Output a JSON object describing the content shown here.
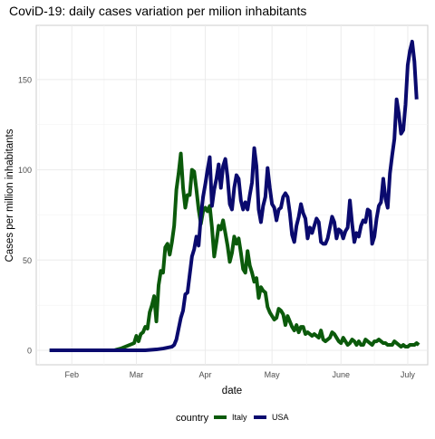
{
  "chart_data": {
    "type": "line",
    "title": "CoviD-19: daily cases variation per milion inhabitants",
    "xlabel": "date",
    "ylabel": "Cases per million inhabitants",
    "x_start": "2020-01-22",
    "x_ticks": [
      {
        "label": "Feb",
        "date": "2020-02-01"
      },
      {
        "label": "Mar",
        "date": "2020-03-01"
      },
      {
        "label": "Apr",
        "date": "2020-04-01"
      },
      {
        "label": "May",
        "date": "2020-05-01"
      },
      {
        "label": "June",
        "date": "2020-06-01"
      },
      {
        "label": "July",
        "date": "2020-07-01"
      }
    ],
    "xlim": [
      "2020-01-16",
      "2020-07-10"
    ],
    "ylim": [
      -8,
      180
    ],
    "y_ticks": [
      0,
      50,
      100,
      150
    ],
    "grid": true,
    "legend": {
      "title": "country",
      "position": "bottom"
    },
    "series": [
      {
        "name": "Italy",
        "color": "#0b5a0b",
        "points": [
          [
            "2020-01-22",
            0
          ],
          [
            "2020-02-20",
            0
          ],
          [
            "2020-02-23",
            1
          ],
          [
            "2020-02-25",
            2
          ],
          [
            "2020-02-27",
            3
          ],
          [
            "2020-02-29",
            4
          ],
          [
            "2020-03-01",
            8
          ],
          [
            "2020-03-02",
            5
          ],
          [
            "2020-03-03",
            9
          ],
          [
            "2020-03-04",
            10
          ],
          [
            "2020-03-05",
            13
          ],
          [
            "2020-03-06",
            12
          ],
          [
            "2020-03-07",
            21
          ],
          [
            "2020-03-08",
            25
          ],
          [
            "2020-03-09",
            30
          ],
          [
            "2020-03-10",
            16
          ],
          [
            "2020-03-11",
            36
          ],
          [
            "2020-03-12",
            44
          ],
          [
            "2020-03-13",
            43
          ],
          [
            "2020-03-14",
            57
          ],
          [
            "2020-03-15",
            59
          ],
          [
            "2020-03-16",
            53
          ],
          [
            "2020-03-17",
            60
          ],
          [
            "2020-03-18",
            69
          ],
          [
            "2020-03-19",
            89
          ],
          [
            "2020-03-20",
            98
          ],
          [
            "2020-03-21",
            109
          ],
          [
            "2020-03-22",
            90
          ],
          [
            "2020-03-23",
            79
          ],
          [
            "2020-03-24",
            86
          ],
          [
            "2020-03-25",
            86
          ],
          [
            "2020-03-26",
            100
          ],
          [
            "2020-03-27",
            99
          ],
          [
            "2020-03-28",
            89
          ],
          [
            "2020-03-29",
            78
          ],
          [
            "2020-03-30",
            70
          ],
          [
            "2020-03-31",
            77
          ],
          [
            "2020-04-01",
            79
          ],
          [
            "2020-04-02",
            77
          ],
          [
            "2020-04-03",
            80
          ],
          [
            "2020-04-04",
            68
          ],
          [
            "2020-04-05",
            52
          ],
          [
            "2020-04-06",
            60
          ],
          [
            "2020-04-07",
            69
          ],
          [
            "2020-04-08",
            67
          ],
          [
            "2020-04-09",
            72
          ],
          [
            "2020-04-10",
            65
          ],
          [
            "2020-04-11",
            58
          ],
          [
            "2020-04-12",
            49
          ],
          [
            "2020-04-13",
            54
          ],
          [
            "2020-04-14",
            63
          ],
          [
            "2020-04-15",
            59
          ],
          [
            "2020-04-16",
            62
          ],
          [
            "2020-04-17",
            54
          ],
          [
            "2020-04-18",
            45
          ],
          [
            "2020-04-19",
            43
          ],
          [
            "2020-04-20",
            55
          ],
          [
            "2020-04-21",
            47
          ],
          [
            "2020-04-22",
            43
          ],
          [
            "2020-04-23",
            38
          ],
          [
            "2020-04-24",
            40
          ],
          [
            "2020-04-25",
            29
          ],
          [
            "2020-04-26",
            35
          ],
          [
            "2020-04-27",
            33
          ],
          [
            "2020-04-28",
            32
          ],
          [
            "2020-04-29",
            24
          ],
          [
            "2020-04-30",
            21
          ],
          [
            "2020-05-01",
            19
          ],
          [
            "2020-05-02",
            17
          ],
          [
            "2020-05-03",
            18
          ],
          [
            "2020-05-04",
            23
          ],
          [
            "2020-05-05",
            22
          ],
          [
            "2020-05-06",
            20
          ],
          [
            "2020-05-07",
            14
          ],
          [
            "2020-05-08",
            19
          ],
          [
            "2020-05-09",
            16
          ],
          [
            "2020-05-10",
            13
          ],
          [
            "2020-05-11",
            11
          ],
          [
            "2020-05-12",
            14
          ],
          [
            "2020-05-13",
            10
          ],
          [
            "2020-05-14",
            13
          ],
          [
            "2020-05-15",
            13
          ],
          [
            "2020-05-16",
            9
          ],
          [
            "2020-05-17",
            10
          ],
          [
            "2020-05-18",
            9
          ],
          [
            "2020-05-19",
            8
          ],
          [
            "2020-05-20",
            9
          ],
          [
            "2020-05-21",
            8
          ],
          [
            "2020-05-22",
            7
          ],
          [
            "2020-05-23",
            11
          ],
          [
            "2020-05-24",
            6
          ],
          [
            "2020-05-25",
            5
          ],
          [
            "2020-05-26",
            6
          ],
          [
            "2020-05-27",
            7
          ],
          [
            "2020-05-28",
            10
          ],
          [
            "2020-05-29",
            9
          ],
          [
            "2020-05-30",
            7
          ],
          [
            "2020-05-31",
            5
          ],
          [
            "2020-06-01",
            4
          ],
          [
            "2020-06-02",
            7
          ],
          [
            "2020-06-03",
            5
          ],
          [
            "2020-06-04",
            3
          ],
          [
            "2020-06-05",
            4
          ],
          [
            "2020-06-06",
            6
          ],
          [
            "2020-06-07",
            5
          ],
          [
            "2020-06-08",
            3
          ],
          [
            "2020-06-09",
            5
          ],
          [
            "2020-06-10",
            3
          ],
          [
            "2020-06-11",
            3
          ],
          [
            "2020-06-12",
            6
          ],
          [
            "2020-06-13",
            5
          ],
          [
            "2020-06-14",
            4
          ],
          [
            "2020-06-15",
            3
          ],
          [
            "2020-06-16",
            5
          ],
          [
            "2020-06-17",
            5
          ],
          [
            "2020-06-18",
            6
          ],
          [
            "2020-06-19",
            5
          ],
          [
            "2020-06-20",
            4
          ],
          [
            "2020-06-21",
            4
          ],
          [
            "2020-06-22",
            3
          ],
          [
            "2020-06-23",
            3
          ],
          [
            "2020-06-24",
            3
          ],
          [
            "2020-06-25",
            5
          ],
          [
            "2020-06-26",
            4
          ],
          [
            "2020-06-27",
            3
          ],
          [
            "2020-06-28",
            2
          ],
          [
            "2020-06-29",
            3
          ],
          [
            "2020-06-30",
            2
          ],
          [
            "2020-07-01",
            2
          ],
          [
            "2020-07-02",
            3
          ],
          [
            "2020-07-03",
            3
          ],
          [
            "2020-07-04",
            3
          ],
          [
            "2020-07-05",
            4
          ],
          [
            "2020-07-06",
            3
          ]
        ]
      },
      {
        "name": "USA",
        "color": "#0a0a6e",
        "points": [
          [
            "2020-01-22",
            0
          ],
          [
            "2020-03-05",
            0
          ],
          [
            "2020-03-10",
            0.5
          ],
          [
            "2020-03-13",
            1
          ],
          [
            "2020-03-15",
            1.5
          ],
          [
            "2020-03-17",
            2
          ],
          [
            "2020-03-18",
            3
          ],
          [
            "2020-03-19",
            6
          ],
          [
            "2020-03-20",
            12
          ],
          [
            "2020-03-21",
            18
          ],
          [
            "2020-03-22",
            22
          ],
          [
            "2020-03-23",
            31
          ],
          [
            "2020-03-24",
            32
          ],
          [
            "2020-03-25",
            42
          ],
          [
            "2020-03-26",
            52
          ],
          [
            "2020-03-27",
            56
          ],
          [
            "2020-03-28",
            63
          ],
          [
            "2020-03-29",
            58
          ],
          [
            "2020-03-30",
            74
          ],
          [
            "2020-03-31",
            85
          ],
          [
            "2020-04-01",
            92
          ],
          [
            "2020-04-02",
            100
          ],
          [
            "2020-04-03",
            107
          ],
          [
            "2020-04-04",
            80
          ],
          [
            "2020-04-05",
            89
          ],
          [
            "2020-04-06",
            95
          ],
          [
            "2020-04-07",
            103
          ],
          [
            "2020-04-08",
            90
          ],
          [
            "2020-04-09",
            102
          ],
          [
            "2020-04-10",
            106
          ],
          [
            "2020-04-11",
            96
          ],
          [
            "2020-04-12",
            81
          ],
          [
            "2020-04-13",
            78
          ],
          [
            "2020-04-14",
            90
          ],
          [
            "2020-04-15",
            97
          ],
          [
            "2020-04-16",
            95
          ],
          [
            "2020-04-17",
            83
          ],
          [
            "2020-04-18",
            78
          ],
          [
            "2020-04-19",
            82
          ],
          [
            "2020-04-20",
            78
          ],
          [
            "2020-04-21",
            86
          ],
          [
            "2020-04-22",
            93
          ],
          [
            "2020-04-23",
            112
          ],
          [
            "2020-04-24",
            102
          ],
          [
            "2020-04-25",
            78
          ],
          [
            "2020-04-26",
            71
          ],
          [
            "2020-04-27",
            80
          ],
          [
            "2020-04-28",
            85
          ],
          [
            "2020-04-29",
            101
          ],
          [
            "2020-04-30",
            90
          ],
          [
            "2020-05-01",
            81
          ],
          [
            "2020-05-02",
            79
          ],
          [
            "2020-05-03",
            72
          ],
          [
            "2020-05-04",
            78
          ],
          [
            "2020-05-05",
            79
          ],
          [
            "2020-05-06",
            85
          ],
          [
            "2020-05-07",
            87
          ],
          [
            "2020-05-08",
            85
          ],
          [
            "2020-05-09",
            76
          ],
          [
            "2020-05-10",
            64
          ],
          [
            "2020-05-11",
            60
          ],
          [
            "2020-05-12",
            69
          ],
          [
            "2020-05-13",
            74
          ],
          [
            "2020-05-14",
            81
          ],
          [
            "2020-05-15",
            76
          ],
          [
            "2020-05-16",
            73
          ],
          [
            "2020-05-17",
            62
          ],
          [
            "2020-05-18",
            68
          ],
          [
            "2020-05-19",
            65
          ],
          [
            "2020-05-20",
            69
          ],
          [
            "2020-05-21",
            73
          ],
          [
            "2020-05-22",
            71
          ],
          [
            "2020-05-23",
            60
          ],
          [
            "2020-05-24",
            59
          ],
          [
            "2020-05-25",
            59
          ],
          [
            "2020-05-26",
            62
          ],
          [
            "2020-05-27",
            68
          ],
          [
            "2020-05-28",
            74
          ],
          [
            "2020-05-29",
            71
          ],
          [
            "2020-05-30",
            62
          ],
          [
            "2020-05-31",
            67
          ],
          [
            "2020-06-01",
            66
          ],
          [
            "2020-06-02",
            62
          ],
          [
            "2020-06-03",
            66
          ],
          [
            "2020-06-04",
            68
          ],
          [
            "2020-06-05",
            83
          ],
          [
            "2020-06-06",
            70
          ],
          [
            "2020-06-07",
            60
          ],
          [
            "2020-06-08",
            65
          ],
          [
            "2020-06-09",
            63
          ],
          [
            "2020-06-10",
            69
          ],
          [
            "2020-06-11",
            72
          ],
          [
            "2020-06-12",
            71
          ],
          [
            "2020-06-13",
            78
          ],
          [
            "2020-06-14",
            77
          ],
          [
            "2020-06-15",
            59
          ],
          [
            "2020-06-16",
            63
          ],
          [
            "2020-06-17",
            73
          ],
          [
            "2020-06-18",
            80
          ],
          [
            "2020-06-19",
            82
          ],
          [
            "2020-06-20",
            95
          ],
          [
            "2020-06-21",
            84
          ],
          [
            "2020-06-22",
            79
          ],
          [
            "2020-06-23",
            98
          ],
          [
            "2020-06-24",
            108
          ],
          [
            "2020-06-25",
            117
          ],
          [
            "2020-06-26",
            139
          ],
          [
            "2020-06-27",
            131
          ],
          [
            "2020-06-28",
            120
          ],
          [
            "2020-06-29",
            122
          ],
          [
            "2020-06-30",
            136
          ],
          [
            "2020-07-01",
            158
          ],
          [
            "2020-07-02",
            166
          ],
          [
            "2020-07-03",
            171
          ],
          [
            "2020-07-04",
            160
          ],
          [
            "2020-07-05",
            139
          ]
        ]
      }
    ]
  }
}
